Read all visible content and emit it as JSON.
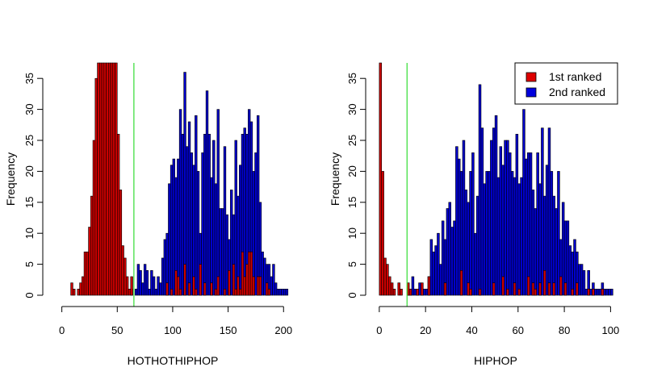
{
  "chart_data": [
    {
      "type": "histogram",
      "xlabel": "HOTHOTHIPHOP",
      "ylabel": "Frequency",
      "xlim": [
        -7,
        210
      ],
      "ylim": [
        0,
        37.5
      ],
      "xticks": [
        0,
        50,
        100,
        150,
        200
      ],
      "yticks": [
        0,
        5,
        10,
        15,
        20,
        25,
        30,
        35
      ],
      "bin_width": 2,
      "vline": {
        "x": 65,
        "color": "#33dd33"
      },
      "series": [
        {
          "color": "#0000cc",
          "bins": [
            [
              62,
              1
            ],
            [
              66,
              1
            ],
            [
              68,
              5
            ],
            [
              70,
              4
            ],
            [
              72,
              2
            ],
            [
              74,
              5
            ],
            [
              76,
              4
            ],
            [
              78,
              1
            ],
            [
              80,
              4
            ],
            [
              82,
              3
            ],
            [
              84,
              1
            ],
            [
              86,
              3
            ],
            [
              88,
              2
            ],
            [
              90,
              6
            ],
            [
              92,
              9
            ],
            [
              94,
              10
            ],
            [
              96,
              18
            ],
            [
              98,
              21
            ],
            [
              100,
              22
            ],
            [
              102,
              19
            ],
            [
              104,
              22
            ],
            [
              106,
              30
            ],
            [
              108,
              26
            ],
            [
              110,
              36
            ],
            [
              112,
              24
            ],
            [
              114,
              28
            ],
            [
              116,
              23
            ],
            [
              118,
              21
            ],
            [
              120,
              29
            ],
            [
              122,
              20
            ],
            [
              124,
              10
            ],
            [
              126,
              23
            ],
            [
              128,
              26
            ],
            [
              130,
              33
            ],
            [
              132,
              26
            ],
            [
              134,
              19
            ],
            [
              136,
              25
            ],
            [
              138,
              18
            ],
            [
              140,
              30
            ],
            [
              142,
              14
            ],
            [
              144,
              14
            ],
            [
              146,
              24
            ],
            [
              148,
              13
            ],
            [
              150,
              9
            ],
            [
              152,
              17
            ],
            [
              154,
              13
            ],
            [
              156,
              25
            ],
            [
              158,
              16
            ],
            [
              160,
              21
            ],
            [
              162,
              26
            ],
            [
              164,
              27
            ],
            [
              166,
              26
            ],
            [
              168,
              30
            ],
            [
              170,
              28
            ],
            [
              172,
              20
            ],
            [
              174,
              23
            ],
            [
              176,
              29
            ],
            [
              178,
              15
            ],
            [
              180,
              7
            ],
            [
              182,
              6
            ],
            [
              184,
              5
            ],
            [
              186,
              5
            ],
            [
              188,
              3
            ],
            [
              190,
              5
            ],
            [
              192,
              2
            ],
            [
              194,
              1
            ],
            [
              196,
              1
            ],
            [
              198,
              1
            ],
            [
              200,
              1
            ],
            [
              202,
              1
            ]
          ]
        },
        {
          "color": "#cc0000",
          "bins": [
            [
              8,
              2
            ],
            [
              10,
              1
            ],
            [
              14,
              1
            ],
            [
              16,
              2
            ],
            [
              18,
              3
            ],
            [
              20,
              7
            ],
            [
              22,
              7
            ],
            [
              24,
              11
            ],
            [
              26,
              16
            ],
            [
              28,
              25
            ],
            [
              30,
              35
            ],
            [
              32,
              38
            ],
            [
              34,
              38
            ],
            [
              36,
              38
            ],
            [
              38,
              38
            ],
            [
              40,
              38
            ],
            [
              42,
              38
            ],
            [
              44,
              38
            ],
            [
              46,
              38
            ],
            [
              48,
              38
            ],
            [
              50,
              26
            ],
            [
              52,
              17
            ],
            [
              54,
              8
            ],
            [
              56,
              6
            ],
            [
              58,
              3
            ],
            [
              60,
              1
            ],
            [
              62,
              3
            ],
            [
              94,
              2
            ],
            [
              98,
              1
            ],
            [
              102,
              4
            ],
            [
              104,
              3
            ],
            [
              106,
              1
            ],
            [
              110,
              5
            ],
            [
              114,
              2
            ],
            [
              118,
              3
            ],
            [
              120,
              1
            ],
            [
              124,
              5
            ],
            [
              128,
              2
            ],
            [
              134,
              2
            ],
            [
              138,
              1
            ],
            [
              140,
              3
            ],
            [
              146,
              1
            ],
            [
              150,
              4
            ],
            [
              154,
              5
            ],
            [
              156,
              1
            ],
            [
              158,
              3
            ],
            [
              160,
              1
            ],
            [
              162,
              7
            ],
            [
              164,
              3
            ],
            [
              166,
              5
            ],
            [
              168,
              7
            ],
            [
              170,
              7
            ],
            [
              172,
              3
            ],
            [
              176,
              3
            ],
            [
              178,
              3
            ],
            [
              184,
              2
            ],
            [
              186,
              1
            ]
          ]
        }
      ]
    },
    {
      "type": "histogram",
      "xlabel": "HIPHOP",
      "ylabel": "Frequency",
      "xlim": [
        -1,
        103
      ],
      "ylim": [
        0,
        37.5
      ],
      "xticks": [
        0,
        20,
        40,
        60,
        80,
        100
      ],
      "yticks": [
        0,
        5,
        10,
        15,
        20,
        25,
        30,
        35
      ],
      "bin_width": 1,
      "vline": {
        "x": 12,
        "color": "#33dd33"
      },
      "legend": {
        "position": "top-right",
        "entries": [
          {
            "label": "1st ranked",
            "color": "#dd0000"
          },
          {
            "label": "2nd ranked",
            "color": "#0000dd"
          }
        ]
      },
      "series": [
        {
          "color": "#0000cc",
          "bins": [
            [
              12,
              1
            ],
            [
              13,
              1
            ],
            [
              14,
              3
            ],
            [
              15,
              1
            ],
            [
              16,
              1
            ],
            [
              17,
              2
            ],
            [
              18,
              1
            ],
            [
              19,
              1
            ],
            [
              20,
              1
            ],
            [
              21,
              3
            ],
            [
              22,
              9
            ],
            [
              23,
              7
            ],
            [
              24,
              8
            ],
            [
              25,
              10
            ],
            [
              26,
              5
            ],
            [
              27,
              12
            ],
            [
              28,
              9
            ],
            [
              29,
              14
            ],
            [
              30,
              15
            ],
            [
              31,
              11
            ],
            [
              32,
              12
            ],
            [
              33,
              24
            ],
            [
              34,
              22
            ],
            [
              35,
              20
            ],
            [
              36,
              25
            ],
            [
              37,
              17
            ],
            [
              38,
              15
            ],
            [
              39,
              20
            ],
            [
              40,
              23
            ],
            [
              41,
              10
            ],
            [
              42,
              16
            ],
            [
              43,
              34
            ],
            [
              44,
              27
            ],
            [
              45,
              18
            ],
            [
              46,
              20
            ],
            [
              47,
              20
            ],
            [
              48,
              25
            ],
            [
              49,
              27
            ],
            [
              50,
              29
            ],
            [
              51,
              19
            ],
            [
              52,
              24
            ],
            [
              53,
              21
            ],
            [
              54,
              25
            ],
            [
              55,
              25
            ],
            [
              56,
              23
            ],
            [
              57,
              20
            ],
            [
              58,
              19
            ],
            [
              59,
              26
            ],
            [
              60,
              18
            ],
            [
              61,
              19
            ],
            [
              62,
              30
            ],
            [
              63,
              22
            ],
            [
              64,
              23
            ],
            [
              65,
              23
            ],
            [
              66,
              17
            ],
            [
              67,
              14
            ],
            [
              68,
              23
            ],
            [
              69,
              18
            ],
            [
              70,
              27
            ],
            [
              71,
              16
            ],
            [
              72,
              21
            ],
            [
              73,
              27
            ],
            [
              74,
              20
            ],
            [
              75,
              16
            ],
            [
              76,
              14
            ],
            [
              77,
              20
            ],
            [
              78,
              9
            ],
            [
              79,
              15
            ],
            [
              80,
              12
            ],
            [
              81,
              12
            ],
            [
              82,
              8
            ],
            [
              83,
              7
            ],
            [
              84,
              9
            ],
            [
              85,
              7
            ],
            [
              86,
              5
            ],
            [
              87,
              5
            ],
            [
              88,
              4
            ],
            [
              89,
              1
            ],
            [
              90,
              4
            ],
            [
              91,
              1
            ],
            [
              92,
              2
            ],
            [
              93,
              1
            ],
            [
              94,
              1
            ],
            [
              95,
              1
            ],
            [
              96,
              2
            ],
            [
              97,
              1
            ],
            [
              98,
              1
            ],
            [
              99,
              1
            ],
            [
              100,
              1
            ]
          ]
        },
        {
          "color": "#cc0000",
          "bins": [
            [
              0,
              38
            ],
            [
              1,
              20
            ],
            [
              2,
              6
            ],
            [
              3,
              5
            ],
            [
              4,
              3
            ],
            [
              5,
              2
            ],
            [
              6,
              1
            ],
            [
              8,
              2
            ],
            [
              9,
              1
            ],
            [
              12,
              2
            ],
            [
              13,
              1
            ],
            [
              16,
              1
            ],
            [
              18,
              2
            ],
            [
              21,
              3
            ],
            [
              28,
              2
            ],
            [
              35,
              4
            ],
            [
              38,
              2
            ],
            [
              39,
              1
            ],
            [
              43,
              1
            ],
            [
              49,
              2
            ],
            [
              53,
              3
            ],
            [
              55,
              1
            ],
            [
              58,
              2
            ],
            [
              60,
              1
            ],
            [
              64,
              3
            ],
            [
              66,
              2
            ],
            [
              67,
              1
            ],
            [
              69,
              2
            ],
            [
              71,
              4
            ],
            [
              73,
              2
            ],
            [
              75,
              2
            ],
            [
              78,
              3
            ],
            [
              80,
              2
            ],
            [
              83,
              1
            ],
            [
              85,
              2
            ],
            [
              90,
              1
            ],
            [
              92,
              1
            ],
            [
              96,
              1
            ]
          ]
        }
      ]
    }
  ]
}
